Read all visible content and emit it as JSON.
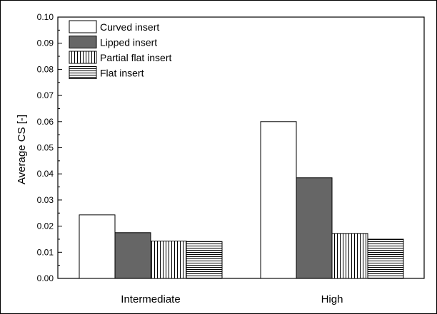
{
  "chart_data": {
    "type": "bar",
    "categories": [
      "Intermediate",
      "High"
    ],
    "series": [
      {
        "name": "Curved insert",
        "values": [
          0.0243,
          0.06
        ],
        "fill": "#ffffff",
        "pattern": "none"
      },
      {
        "name": "Lipped insert",
        "values": [
          0.0175,
          0.0385
        ],
        "fill": "#666666",
        "pattern": "solid"
      },
      {
        "name": "Partial flat insert",
        "values": [
          0.0143,
          0.0172
        ],
        "fill": "#ffffff",
        "pattern": "vertical-lines"
      },
      {
        "name": "Flat insert",
        "values": [
          0.0141,
          0.015
        ],
        "fill": "#ffffff",
        "pattern": "horizontal-lines"
      }
    ],
    "xlabel": "",
    "ylabel": "Average CS [-]",
    "ylim": [
      0,
      0.1
    ],
    "yticks": [
      "0.00",
      "0.01",
      "0.02",
      "0.03",
      "0.04",
      "0.05",
      "0.06",
      "0.07",
      "0.08",
      "0.09",
      "0.10"
    ],
    "grid": false,
    "legend_position": "top-left"
  }
}
